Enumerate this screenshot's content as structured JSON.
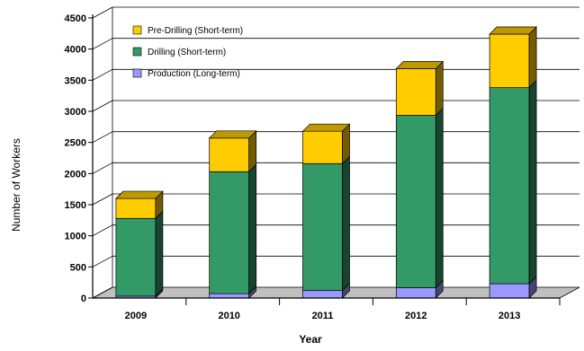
{
  "chart_data": {
    "type": "bar",
    "stacked": true,
    "three_d": true,
    "title": "",
    "xlabel": "Year",
    "ylabel": "Number of Workers",
    "ylim": [
      0,
      4500
    ],
    "yticks": [
      "0",
      "500",
      "1000",
      "1500",
      "2000",
      "2500",
      "3000",
      "3500",
      "4000",
      "4500"
    ],
    "categories": [
      "2009",
      "2010",
      "2011",
      "2012",
      "2013"
    ],
    "series": [
      {
        "name": "Production (Long-term)",
        "color": "#9999ff",
        "values": [
          30,
          70,
          120,
          165,
          230
        ]
      },
      {
        "name": "Drilling (Short-term)",
        "color": "#339966",
        "values": [
          1250,
          1960,
          2040,
          2770,
          3150
        ]
      },
      {
        "name": "Pre-Drilling (Short-term)",
        "color": "#ffcc00",
        "values": [
          320,
          540,
          520,
          750,
          860
        ]
      }
    ],
    "legend_order": [
      "Pre-Drilling (Short-term)",
      "Drilling (Short-term)",
      "Production (Long-term)"
    ],
    "legend_position": "top-left",
    "grid": true
  }
}
